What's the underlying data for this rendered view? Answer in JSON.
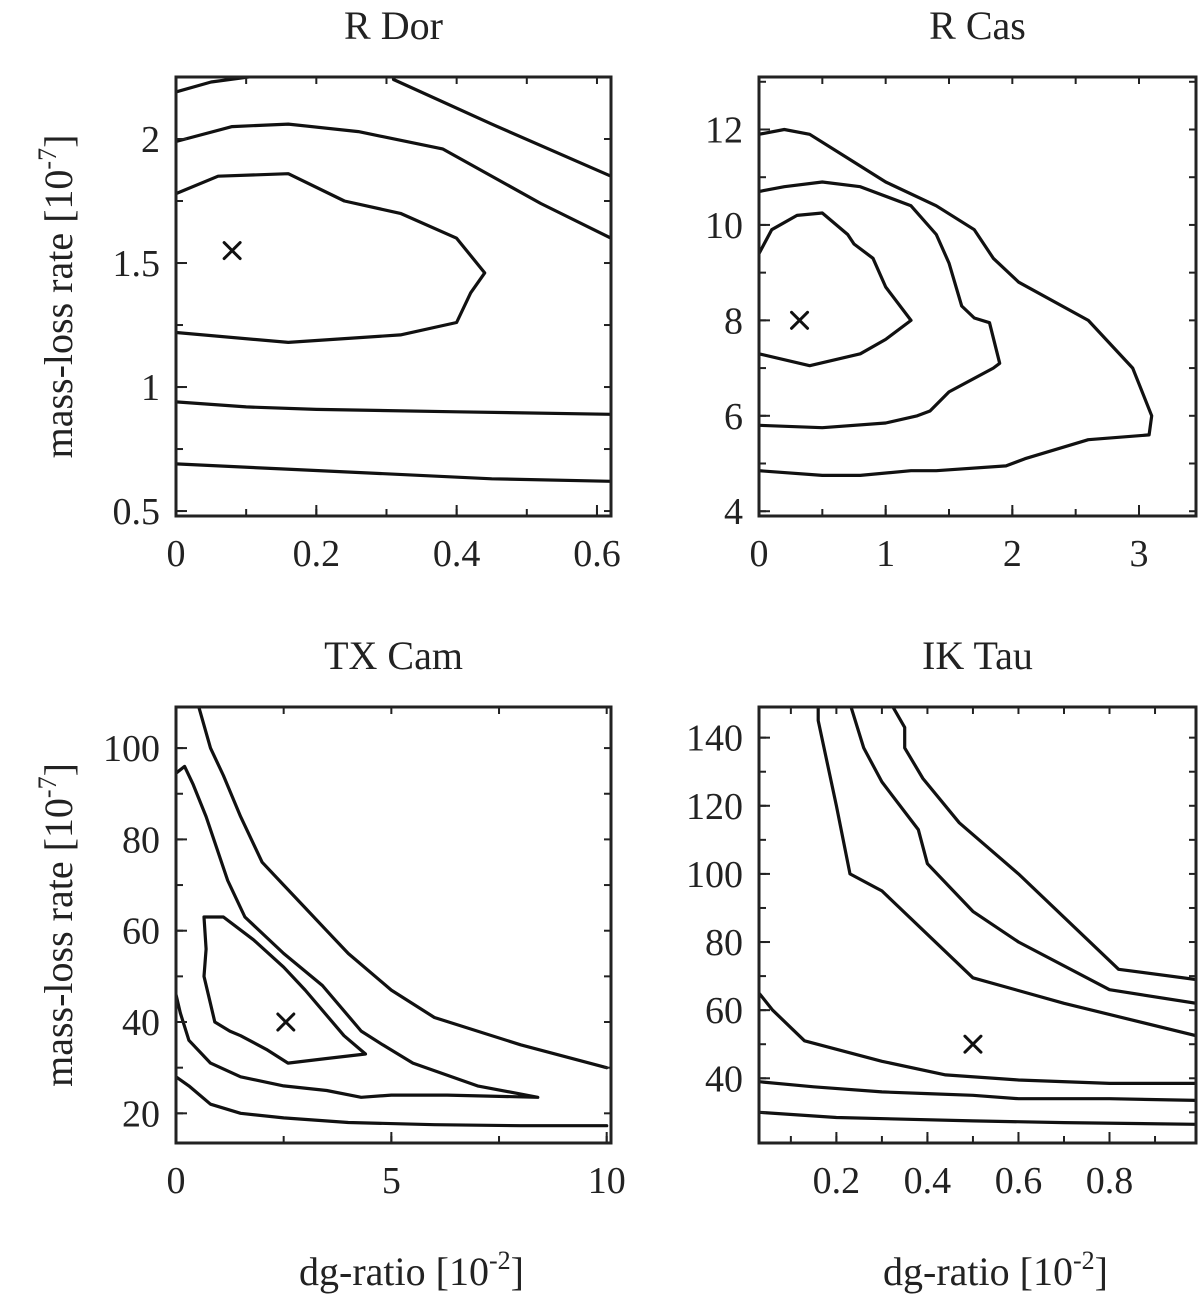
{
  "chart_data": [
    {
      "type": "contour",
      "title": "R Dor",
      "xlim": [
        0,
        0.62
      ],
      "ylim": [
        0.48,
        2.25
      ],
      "xticks": [
        0,
        0.2,
        0.4,
        0.6
      ],
      "yticks": [
        0.5,
        1,
        1.5,
        2
      ],
      "xtick_labels": [
        "0",
        "0.2",
        "0.4",
        "0.6"
      ],
      "ytick_labels": [
        "0.5",
        "1",
        "1.5",
        "2"
      ],
      "xlabel": null,
      "ylabel": {
        "base": "mass-loss rate [10",
        "exp": "-7",
        "close": "]"
      },
      "best_fit": [
        0.08,
        1.55
      ],
      "contours": [
        [
          [
            0,
            2.19
          ],
          [
            0.05,
            2.23
          ],
          [
            0.13,
            2.26
          ]
        ],
        [
          [
            0.31,
            2.26
          ],
          [
            0.31,
            2.24
          ],
          [
            0.45,
            2.06
          ],
          [
            0.62,
            1.85
          ]
        ],
        [
          [
            0,
            1.99
          ],
          [
            0.08,
            2.05
          ],
          [
            0.16,
            2.06
          ],
          [
            0.26,
            2.03
          ],
          [
            0.38,
            1.96
          ],
          [
            0.52,
            1.74
          ],
          [
            0.62,
            1.6
          ]
        ],
        [
          [
            0,
            1.78
          ],
          [
            0.06,
            1.85
          ],
          [
            0.16,
            1.86
          ],
          [
            0.24,
            1.75
          ],
          [
            0.32,
            1.7
          ],
          [
            0.4,
            1.6
          ],
          [
            0.44,
            1.46
          ],
          [
            0.42,
            1.38
          ],
          [
            0.4,
            1.26
          ],
          [
            0.32,
            1.21
          ],
          [
            0.16,
            1.18
          ],
          [
            0,
            1.22
          ]
        ],
        [
          [
            0,
            0.94
          ],
          [
            0.1,
            0.92
          ],
          [
            0.2,
            0.91
          ],
          [
            0.4,
            0.9
          ],
          [
            0.62,
            0.89
          ]
        ],
        [
          [
            0,
            0.69
          ],
          [
            0.15,
            0.67
          ],
          [
            0.3,
            0.65
          ],
          [
            0.45,
            0.63
          ],
          [
            0.62,
            0.62
          ]
        ]
      ]
    },
    {
      "type": "contour",
      "title": "R Cas",
      "xlim": [
        0,
        3.45
      ],
      "ylim": [
        3.9,
        13.1
      ],
      "xticks": [
        0,
        1,
        2,
        3
      ],
      "yticks": [
        4,
        6,
        8,
        10,
        12
      ],
      "xtick_labels": [
        "0",
        "1",
        "2",
        "3"
      ],
      "ytick_labels": [
        "4",
        "6",
        "8",
        "10",
        "12"
      ],
      "xlabel": null,
      "ylabel": null,
      "best_fit": [
        0.32,
        8.0
      ],
      "contours": [
        [
          [
            0,
            11.9
          ],
          [
            0.2,
            12.0
          ],
          [
            0.4,
            11.9
          ],
          [
            0.7,
            11.4
          ],
          [
            1.0,
            10.9
          ],
          [
            1.4,
            10.4
          ],
          [
            1.7,
            9.9
          ],
          [
            1.85,
            9.3
          ],
          [
            2.05,
            8.8
          ],
          [
            2.6,
            8.0
          ],
          [
            2.95,
            7.0
          ],
          [
            3.1,
            6.0
          ],
          [
            3.08,
            5.6
          ],
          [
            2.6,
            5.5
          ],
          [
            2.1,
            5.1
          ],
          [
            1.95,
            4.95
          ],
          [
            1.4,
            4.85
          ],
          [
            1.2,
            4.85
          ],
          [
            0.8,
            4.75
          ],
          [
            0.5,
            4.75
          ],
          [
            0,
            4.85
          ]
        ],
        [
          [
            0,
            10.7
          ],
          [
            0.2,
            10.8
          ],
          [
            0.5,
            10.9
          ],
          [
            0.8,
            10.8
          ],
          [
            1.2,
            10.4
          ],
          [
            1.4,
            9.8
          ],
          [
            1.5,
            9.2
          ],
          [
            1.6,
            8.3
          ],
          [
            1.7,
            8.05
          ],
          [
            1.82,
            7.95
          ],
          [
            1.9,
            7.1
          ],
          [
            1.85,
            7.0
          ],
          [
            1.5,
            6.5
          ],
          [
            1.35,
            6.1
          ],
          [
            1.25,
            6.0
          ],
          [
            1.0,
            5.85
          ],
          [
            0.5,
            5.75
          ],
          [
            0,
            5.8
          ]
        ],
        [
          [
            0,
            9.4
          ],
          [
            0.1,
            9.9
          ],
          [
            0.3,
            10.2
          ],
          [
            0.5,
            10.25
          ],
          [
            0.7,
            9.8
          ],
          [
            0.75,
            9.6
          ],
          [
            0.9,
            9.3
          ],
          [
            1.0,
            8.7
          ],
          [
            1.2,
            8.0
          ],
          [
            1.0,
            7.6
          ],
          [
            0.8,
            7.3
          ],
          [
            0.4,
            7.05
          ],
          [
            0,
            7.3
          ]
        ]
      ]
    },
    {
      "type": "contour",
      "title": "TX Cam",
      "xlim": [
        0,
        10.1
      ],
      "ylim": [
        13.5,
        109
      ],
      "xticks": [
        0,
        5,
        10
      ],
      "yticks": [
        20,
        40,
        60,
        80,
        100
      ],
      "xtick_labels": [
        "0",
        "5",
        "10"
      ],
      "ytick_labels": [
        "20",
        "40",
        "60",
        "80",
        "100"
      ],
      "xlabel": {
        "base": "dg-ratio [10",
        "exp": "-2",
        "close": "]"
      },
      "ylabel": {
        "base": "mass-loss rate [10",
        "exp": "-7",
        "close": "]"
      },
      "best_fit": [
        2.55,
        40
      ],
      "contours": [
        [
          [
            0,
            28
          ],
          [
            0.3,
            26
          ],
          [
            0.8,
            22
          ],
          [
            1.5,
            20
          ],
          [
            2.5,
            19
          ],
          [
            4,
            18
          ],
          [
            6,
            17.5
          ],
          [
            8,
            17.3
          ],
          [
            10,
            17.3
          ]
        ],
        [
          [
            0,
            46
          ],
          [
            0.1,
            42
          ],
          [
            0.3,
            36
          ],
          [
            0.8,
            31
          ],
          [
            1.5,
            28
          ],
          [
            2.5,
            26
          ],
          [
            3.5,
            25
          ],
          [
            4.3,
            23.5
          ],
          [
            5,
            24
          ],
          [
            6.3,
            24
          ],
          [
            8.4,
            23.5
          ],
          [
            7,
            26
          ],
          [
            5.5,
            31
          ],
          [
            4.8,
            35
          ],
          [
            4.3,
            38
          ],
          [
            3.4,
            48
          ],
          [
            2.5,
            55
          ],
          [
            1.6,
            63
          ],
          [
            1.2,
            71
          ],
          [
            0.7,
            85
          ],
          [
            0.4,
            92
          ],
          [
            0.2,
            96
          ],
          [
            0,
            94.5
          ]
        ],
        [
          [
            0.65,
            63
          ],
          [
            0.7,
            56
          ],
          [
            0.65,
            50
          ],
          [
            0.8,
            44
          ],
          [
            0.9,
            40
          ],
          [
            1.25,
            38
          ],
          [
            1.5,
            37
          ],
          [
            2.1,
            34
          ],
          [
            2.6,
            31
          ],
          [
            3.5,
            32
          ],
          [
            4.4,
            33
          ],
          [
            3.9,
            37
          ],
          [
            3.0,
            47
          ],
          [
            2.5,
            52
          ],
          [
            1.8,
            58
          ],
          [
            1.1,
            63
          ],
          [
            0.65,
            63
          ]
        ],
        [
          [
            0.5,
            110
          ],
          [
            0.8,
            100
          ],
          [
            1.1,
            94
          ],
          [
            1.5,
            85
          ],
          [
            2,
            75
          ],
          [
            2.5,
            70
          ],
          [
            3,
            65
          ],
          [
            3.5,
            60
          ],
          [
            4,
            55
          ],
          [
            5,
            47
          ],
          [
            6,
            41
          ],
          [
            8,
            35
          ],
          [
            10,
            30
          ]
        ]
      ]
    },
    {
      "type": "contour",
      "title": "IK Tau",
      "xlim": [
        0.03,
        0.99
      ],
      "ylim": [
        21,
        149
      ],
      "xticks": [
        0.2,
        0.4,
        0.6,
        0.8
      ],
      "yticks": [
        40,
        60,
        80,
        100,
        120,
        140
      ],
      "xtick_labels": [
        "0.2",
        "0.4",
        "0.6",
        "0.8"
      ],
      "ytick_labels": [
        "40",
        "60",
        "80",
        "100",
        "120",
        "140"
      ],
      "xlabel": {
        "base": "dg-ratio [10",
        "exp": "-2",
        "close": "]"
      },
      "ylabel": null,
      "best_fit": [
        0.5,
        50
      ],
      "contours": [
        [
          [
            0.03,
            30
          ],
          [
            0.2,
            28.5
          ],
          [
            0.5,
            27.5
          ],
          [
            0.7,
            27
          ],
          [
            0.99,
            26.5
          ]
        ],
        [
          [
            0.03,
            39
          ],
          [
            0.15,
            37.5
          ],
          [
            0.3,
            36
          ],
          [
            0.4,
            35.5
          ],
          [
            0.5,
            35
          ],
          [
            0.6,
            34
          ],
          [
            0.8,
            34
          ],
          [
            0.99,
            33.5
          ]
        ],
        [
          [
            0.03,
            65
          ],
          [
            0.06,
            60
          ],
          [
            0.13,
            51
          ],
          [
            0.3,
            45
          ],
          [
            0.44,
            41
          ],
          [
            0.6,
            39.5
          ],
          [
            0.8,
            38.5
          ],
          [
            0.99,
            38.5
          ]
        ],
        [
          [
            0.99,
            52.5
          ],
          [
            0.7,
            62
          ],
          [
            0.5,
            69.5
          ],
          [
            0.3,
            95
          ],
          [
            0.23,
            100
          ],
          [
            0.2,
            120
          ],
          [
            0.16,
            145
          ],
          [
            0.16,
            150
          ]
        ],
        [
          [
            0.99,
            62
          ],
          [
            0.8,
            66
          ],
          [
            0.6,
            80
          ],
          [
            0.5,
            89
          ],
          [
            0.4,
            103
          ],
          [
            0.38,
            113
          ],
          [
            0.3,
            127
          ],
          [
            0.26,
            137
          ],
          [
            0.23,
            150
          ]
        ],
        [
          [
            0.99,
            69
          ],
          [
            0.82,
            72
          ],
          [
            0.6,
            100
          ],
          [
            0.47,
            115
          ],
          [
            0.39,
            128
          ],
          [
            0.35,
            137
          ],
          [
            0.35,
            143
          ],
          [
            0.32,
            150
          ]
        ]
      ]
    }
  ]
}
